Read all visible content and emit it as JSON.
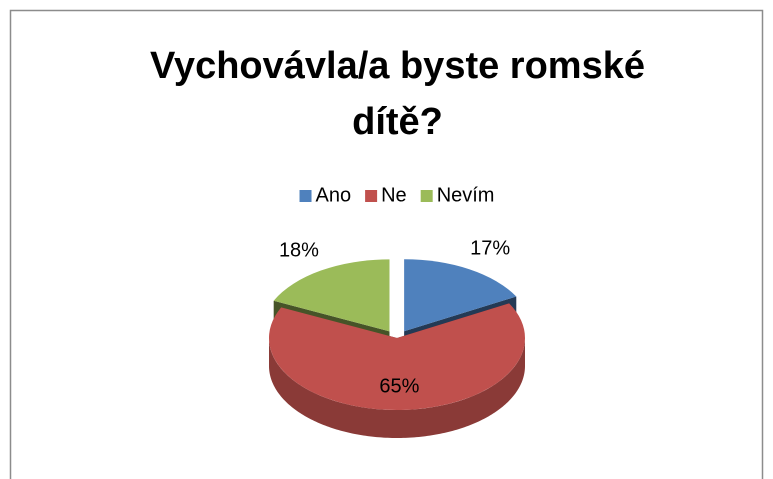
{
  "chart_data": {
    "type": "pie",
    "title": "Vychovávla/a byste romské dítě?",
    "categories": [
      "Ano",
      "Ne",
      "Nevím"
    ],
    "values": [
      17,
      65,
      18
    ],
    "value_labels": [
      "17%",
      "65%",
      "18%"
    ],
    "colors": [
      "#4f81bd",
      "#c0504d",
      "#9bbb59"
    ],
    "legend": "top"
  }
}
